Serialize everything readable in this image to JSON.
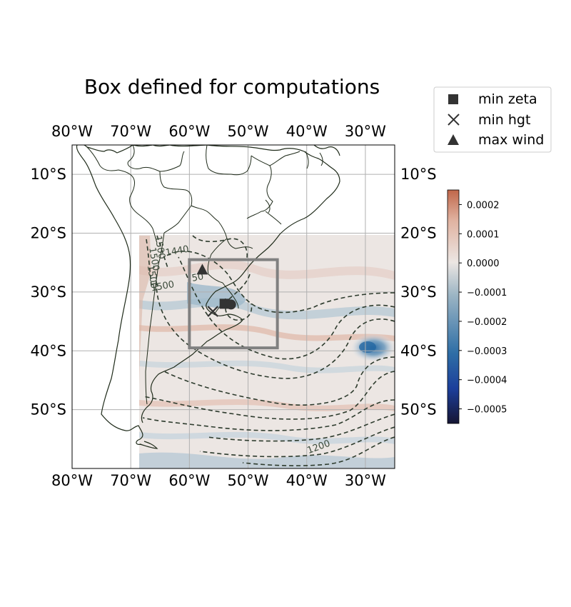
{
  "title": "Box defined for computations",
  "map": {
    "lon_range": [
      -80,
      -25
    ],
    "lat_range": [
      -60,
      -5
    ],
    "x_ticks": [
      "80°W",
      "70°W",
      "60°W",
      "50°W",
      "40°W",
      "30°W"
    ],
    "y_ticks": [
      "10°S",
      "20°S",
      "30°S",
      "40°S",
      "50°S"
    ],
    "grid": true,
    "computation_box": {
      "lon_min": -60,
      "lon_max": -45,
      "lat_min": -39.5,
      "lat_max": -24.5
    },
    "data_region": {
      "lon_min": -69,
      "lon_max": -25,
      "lat_min": -60,
      "lat_max": -20
    }
  },
  "markers": {
    "min_zeta": {
      "lon": -54,
      "lat": -32
    },
    "min_hgt": {
      "lon": -56,
      "lat": -33.3
    },
    "max_wind": {
      "lon": -57.8,
      "lat": -26.3
    }
  },
  "contour_labels": [
    {
      "text": "1500",
      "lon": -65.5,
      "lat": -22.5
    },
    {
      "text": "1500",
      "lon": -66.5,
      "lat": -24.5
    },
    {
      "text": "1500",
      "lon": -66.8,
      "lat": -27.5
    },
    {
      "text": "1500",
      "lon": -64.5,
      "lat": -29.5
    },
    {
      "text": "1440",
      "lon": -62,
      "lat": -23.5
    },
    {
      "text": "50",
      "lon": -58.5,
      "lat": -28
    },
    {
      "text": "1200",
      "lon": -37.8,
      "lat": -56.8
    }
  ],
  "legend": {
    "items": [
      {
        "label": "min zeta",
        "symbol": "square"
      },
      {
        "label": "min hgt",
        "symbol": "cross"
      },
      {
        "label": "max wind",
        "symbol": "triangle"
      }
    ]
  },
  "colorbar": {
    "min": -0.00055,
    "max": 0.00025,
    "ticks": [
      "0.0002",
      "0.0001",
      "0.0000",
      "−0.0001",
      "−0.0002",
      "−0.0003",
      "−0.0004",
      "−0.0005"
    ],
    "tick_values": [
      0.0002,
      0.0001,
      0.0,
      -0.0001,
      -0.0002,
      -0.0003,
      -0.0004,
      -0.0005
    ],
    "colors": {
      "high": "#c0674a",
      "mid_high": "#e0b2a0",
      "zero": "#ece6e3",
      "mid_low": "#9cb5c4",
      "low": "#2e6ea6",
      "lower": "#1c3f9b",
      "lowest": "#161533"
    }
  },
  "colors": {
    "coastline": "#1f2b1a",
    "contour": "#2d3b2d",
    "grid": "#b0b0b0",
    "box": "#808080",
    "marker": "#333333"
  },
  "chart_data": {
    "type": "heatmap",
    "title": "Box defined for computations",
    "xlabel": "",
    "ylabel": "",
    "xlim": [
      -80,
      -25
    ],
    "ylim": [
      -60,
      -5
    ],
    "series": [
      {
        "name": "min zeta",
        "x": [
          -54
        ],
        "y": [
          -32
        ]
      },
      {
        "name": "min hgt",
        "x": [
          -56
        ],
        "y": [
          -33.3
        ]
      },
      {
        "name": "max wind",
        "x": [
          -57.8
        ],
        "y": [
          -26.3
        ]
      }
    ],
    "colorbar_range": [
      -0.00055,
      0.00025
    ],
    "legend_position": "top-right",
    "grid": true
  }
}
